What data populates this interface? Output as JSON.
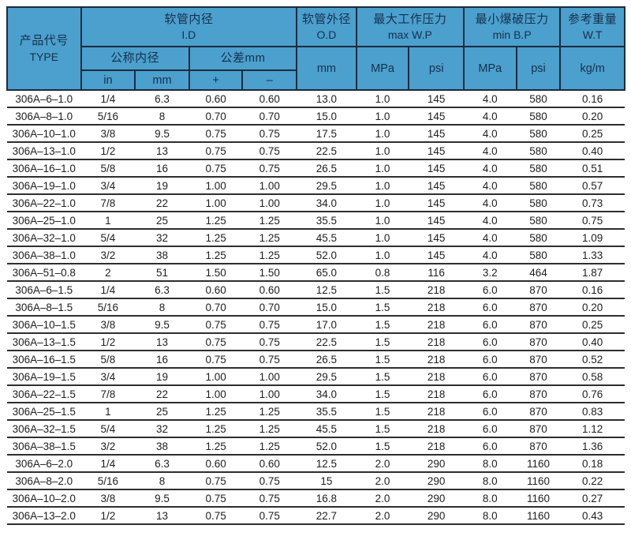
{
  "colors": {
    "header_bg": "#4BA0CD",
    "header_text": "#17304D",
    "header_border": "#1C2B3C",
    "row_line": "#2E2E2E",
    "data_text": "#1E1E1E",
    "page_bg": "#FFFFFF"
  },
  "table": {
    "header": {
      "type": {
        "zh": "产品代号",
        "en": "TYPE"
      },
      "id_group": {
        "zh": "软管内径",
        "en": "I.D"
      },
      "nominal": {
        "zh": "公称内径"
      },
      "tolerance": {
        "zh": "公差mm"
      },
      "sub_in": "in",
      "sub_mm": "mm",
      "sub_plus": "+",
      "sub_minus": "–",
      "od_group": {
        "zh": "软管外径",
        "en": "O.D"
      },
      "od_unit": "mm",
      "wp_group": {
        "zh": "最大工作压力",
        "en": "max W.P"
      },
      "wp_mpa": "MPa",
      "wp_psi": "psi",
      "bp_group": {
        "zh": "最小爆破压力",
        "en": "min B.P"
      },
      "bp_mpa": "MPa",
      "bp_psi": "psi",
      "wt_group": {
        "zh": "参考重量",
        "en": "W.T"
      },
      "wt_unit": "kg/m"
    },
    "columns": [
      "TYPE",
      "in",
      "mm",
      "+",
      "-",
      "O.D mm",
      "max W.P MPa",
      "max W.P psi",
      "min B.P MPa",
      "min B.P psi",
      "W.T kg/m"
    ],
    "rows": [
      [
        "306A–6–1.0",
        "1/4",
        "6.3",
        "0.60",
        "0.60",
        "13.0",
        "1.0",
        "145",
        "4.0",
        "580",
        "0.16"
      ],
      [
        "306A–8–1.0",
        "5/16",
        "8",
        "0.70",
        "0.70",
        "15.0",
        "1.0",
        "145",
        "4.0",
        "580",
        "0.20"
      ],
      [
        "306A–10–1.0",
        "3/8",
        "9.5",
        "0.75",
        "0.75",
        "17.5",
        "1.0",
        "145",
        "4.0",
        "580",
        "0.25"
      ],
      [
        "306A–13–1.0",
        "1/2",
        "13",
        "0.75",
        "0.75",
        "22.5",
        "1.0",
        "145",
        "4.0",
        "580",
        "0.40"
      ],
      [
        "306A–16–1.0",
        "5/8",
        "16",
        "0.75",
        "0.75",
        "26.5",
        "1.0",
        "145",
        "4.0",
        "580",
        "0.51"
      ],
      [
        "306A–19–1.0",
        "3/4",
        "19",
        "1.00",
        "1.00",
        "29.5",
        "1.0",
        "145",
        "4.0",
        "580",
        "0.57"
      ],
      [
        "306A–22–1.0",
        "7/8",
        "22",
        "1.00",
        "1.00",
        "34.0",
        "1.0",
        "145",
        "4.0",
        "580",
        "0.73"
      ],
      [
        "306A–25–1.0",
        "1",
        "25",
        "1.25",
        "1.25",
        "35.5",
        "1.0",
        "145",
        "4.0",
        "580",
        "0.75"
      ],
      [
        "306A–32–1.0",
        "5/4",
        "32",
        "1.25",
        "1.25",
        "45.5",
        "1.0",
        "145",
        "4.0",
        "580",
        "1.09"
      ],
      [
        "306A–38–1.0",
        "3/2",
        "38",
        "1.25",
        "1.25",
        "52.0",
        "1.0",
        "145",
        "4.0",
        "580",
        "1.33"
      ],
      [
        "306A–51–0.8",
        "2",
        "51",
        "1.50",
        "1.50",
        "65.0",
        "0.8",
        "116",
        "3.2",
        "464",
        "1.87"
      ],
      [
        "306A–6–1.5",
        "1/4",
        "6.3",
        "0.60",
        "0.60",
        "12.5",
        "1.5",
        "218",
        "6.0",
        "870",
        "0.16"
      ],
      [
        "306A–8–1.5",
        "5/16",
        "8",
        "0.70",
        "0.70",
        "15.0",
        "1.5",
        "218",
        "6.0",
        "870",
        "0.20"
      ],
      [
        "306A–10–1.5",
        "3/8",
        "9.5",
        "0.75",
        "0.75",
        "17.0",
        "1.5",
        "218",
        "6.0",
        "870",
        "0.25"
      ],
      [
        "306A–13–1.5",
        "1/2",
        "13",
        "0.75",
        "0.75",
        "22.5",
        "1.5",
        "218",
        "6.0",
        "870",
        "0.40"
      ],
      [
        "306A–16–1.5",
        "5/8",
        "16",
        "0.75",
        "0.75",
        "26.5",
        "1.5",
        "218",
        "6.0",
        "870",
        "0.52"
      ],
      [
        "306A–19–1.5",
        "3/4",
        "19",
        "1.00",
        "1.00",
        "29.5",
        "1.5",
        "218",
        "6.0",
        "870",
        "0.58"
      ],
      [
        "306A–22–1.5",
        "7/8",
        "22",
        "1.00",
        "1.00",
        "34.0",
        "1.5",
        "218",
        "6.0",
        "870",
        "0.76"
      ],
      [
        "306A–25–1.5",
        "1",
        "25",
        "1.25",
        "1.25",
        "35.5",
        "1.5",
        "218",
        "6.0",
        "870",
        "0.83"
      ],
      [
        "306A–32–1.5",
        "5/4",
        "32",
        "1.25",
        "1.25",
        "45.5",
        "1.5",
        "218",
        "6.0",
        "870",
        "1.12"
      ],
      [
        "306A–38–1.5",
        "3/2",
        "38",
        "1.25",
        "1.25",
        "52.0",
        "1.5",
        "218",
        "6.0",
        "870",
        "1.36"
      ],
      [
        "306A–6–2.0",
        "1/4",
        "6.3",
        "0.60",
        "0.60",
        "12.5",
        "2.0",
        "290",
        "8.0",
        "1160",
        "0.18"
      ],
      [
        "306A–8–2.0",
        "5/16",
        "8",
        "0.75",
        "0.75",
        "15",
        "2.0",
        "290",
        "8.0",
        "1160",
        "0.22"
      ],
      [
        "306A–10–2.0",
        "3/8",
        "9.5",
        "0.75",
        "0.75",
        "16.8",
        "2.0",
        "290",
        "8.0",
        "1160",
        "0.27"
      ],
      [
        "306A–13–2.0",
        "1/2",
        "13",
        "0.75",
        "0.75",
        "22.7",
        "2.0",
        "290",
        "8.0",
        "1160",
        "0.43"
      ]
    ]
  }
}
